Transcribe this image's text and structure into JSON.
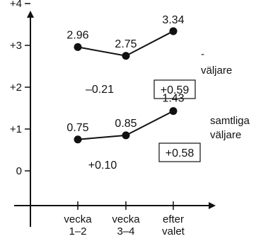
{
  "chart_data": {
    "type": "line",
    "categories": [
      "vecka\n1–2",
      "vecka\n3–4",
      "efter\nvalet"
    ],
    "y_ticks": [
      "+4",
      "+3",
      "+2",
      "+1",
      "0"
    ],
    "ylim": [
      -1,
      4.6
    ],
    "grid": false,
    "series": [
      {
        "name": "...väljare",
        "values": [
          2.96,
          2.75,
          3.34
        ],
        "value_labels": [
          "2.96",
          "2.75",
          "3.34"
        ],
        "change_labels": [
          "–0.21"
        ],
        "total_change": "+0.59"
      },
      {
        "name": "samtliga väljare",
        "values": [
          0.75,
          0.85,
          1.43
        ],
        "value_labels": [
          "0.75",
          "0.85",
          "1.43"
        ],
        "change_labels": [
          "+0.10"
        ],
        "total_change": "+0.58"
      }
    ],
    "colors": {
      "ink": "#111111",
      "background": "#ffffff"
    }
  }
}
